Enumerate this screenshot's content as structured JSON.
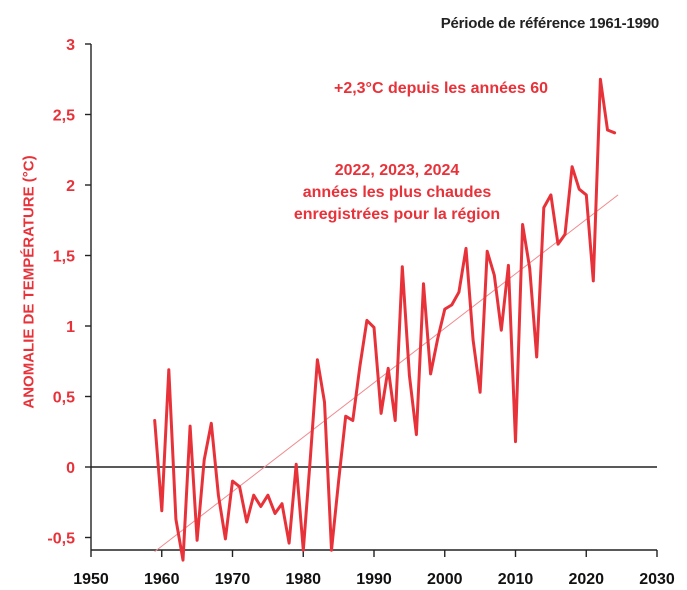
{
  "reference_note": "Période de référence 1961-1990",
  "colors": {
    "accent": "#e8323a",
    "axis": "#222222",
    "trend": "#f08a8e"
  },
  "chart_data": {
    "type": "line",
    "ylabel": "ANOMALIE DE TEMPÉRATURE (°C)",
    "xlabel": "",
    "xlim": [
      1950,
      2030
    ],
    "ylim": [
      -0.5,
      3
    ],
    "xticks": [
      "1950",
      "1960",
      "1970",
      "1980",
      "1990",
      "2000",
      "2010",
      "2020",
      "2030"
    ],
    "yticks": [
      "3",
      "2,5",
      "2",
      "1,5",
      "1",
      "0,5",
      "0",
      "-0,5"
    ],
    "grid": false,
    "series": [
      {
        "type": "line",
        "x": [
          1959,
          1960,
          1961,
          1962,
          1963,
          1964,
          1965,
          1966,
          1967,
          1968,
          1969,
          1970,
          1971,
          1972,
          1973,
          1974,
          1975,
          1976,
          1977,
          1978,
          1979,
          1980,
          1981,
          1982,
          1983,
          1984,
          1985,
          1986,
          1987,
          1988,
          1989,
          1990,
          1991,
          1992,
          1993,
          1994,
          1995,
          1996,
          1997,
          1998,
          1999,
          2000,
          2001,
          2002,
          2003,
          2004,
          2005,
          2006,
          2007,
          2008,
          2009,
          2010,
          2011,
          2012,
          2013,
          2014,
          2015,
          2016,
          2017,
          2018,
          2019,
          2020,
          2021,
          2022,
          2023,
          2024
        ],
        "values": [
          0.33,
          -0.31,
          0.69,
          -0.37,
          -0.66,
          0.29,
          -0.52,
          0.05,
          0.31,
          -0.2,
          -0.51,
          -0.1,
          -0.14,
          -0.39,
          -0.2,
          -0.28,
          -0.2,
          -0.33,
          -0.26,
          -0.54,
          0.02,
          -0.59,
          0.06,
          0.76,
          0.46,
          -0.59,
          -0.1,
          0.36,
          0.33,
          0.71,
          1.04,
          0.99,
          0.38,
          0.7,
          0.33,
          1.42,
          0.65,
          0.23,
          1.3,
          0.66,
          0.91,
          1.12,
          1.15,
          1.24,
          1.55,
          0.9,
          0.53,
          1.53,
          1.36,
          0.97,
          1.43,
          0.18,
          1.72,
          1.41,
          0.78,
          1.84,
          1.93,
          1.58,
          1.65,
          2.13,
          1.97,
          1.93,
          1.32,
          2.75,
          2.39,
          2.37
        ]
      },
      {
        "type": "trend",
        "x": [
          1959,
          2024.5
        ],
        "values": [
          -0.6,
          1.93
        ]
      }
    ],
    "annotations": [
      "+2,3°C depuis les années 60",
      "2022, 2023, 2024",
      "années les plus chaudes",
      "enregistrées pour la région"
    ]
  }
}
